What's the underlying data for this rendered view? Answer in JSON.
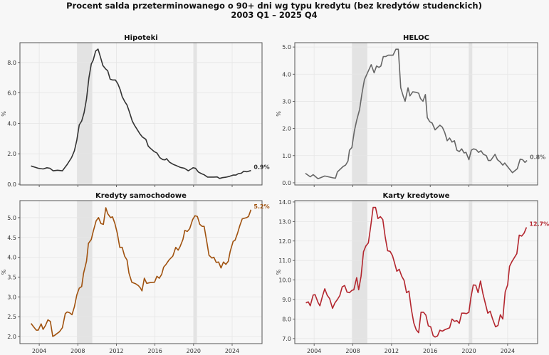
{
  "title_line1": "Procent salda przeterminowanego o 90+ dni wg typu kredytu (bez kredytów studenckich)",
  "title_line2": "2003 Q1 – 2025 Q4",
  "chart_data": [
    {
      "type": "line",
      "title": "Hipoteki",
      "ylabel": "%",
      "color": "#333333",
      "end_label": "0.9%",
      "xlim": [
        2002,
        2027.1
      ],
      "ylim": [
        -0.05,
        9.3
      ],
      "xticks": [
        2004,
        2008,
        2012,
        2016,
        2020,
        2024
      ],
      "show_xtick_labels": false,
      "yticks": [
        0,
        2,
        4,
        6,
        8
      ],
      "ytick_labels": [
        "0.0",
        "2.0",
        "4.0",
        "6.0",
        "8.0"
      ],
      "recessions": [
        [
          2007.9,
          2009.5
        ],
        [
          2020.0,
          2020.35
        ]
      ],
      "x": [
        2003.15,
        2003.9,
        2004.4,
        2004.8,
        2005.1,
        2005.45,
        2005.9,
        2006.4,
        2006.9,
        2007.35,
        2007.65,
        2007.9,
        2008.15,
        2008.4,
        2008.65,
        2008.9,
        2009.15,
        2009.4,
        2009.6,
        2009.85,
        2010.1,
        2010.35,
        2010.6,
        2010.85,
        2011.1,
        2011.35,
        2011.6,
        2011.9,
        2012.15,
        2012.4,
        2012.6,
        2012.85,
        2013.1,
        2013.35,
        2013.65,
        2013.9,
        2014.15,
        2014.45,
        2014.7,
        2015.05,
        2015.3,
        2015.55,
        2015.9,
        2016.2,
        2016.5,
        2016.8,
        2017.05,
        2017.2,
        2017.5,
        2017.9,
        2018.3,
        2018.65,
        2019.05,
        2019.45,
        2019.7,
        2019.95,
        2020.2,
        2020.5,
        2020.8,
        2021.1,
        2021.45,
        2022.1,
        2022.45,
        2022.7,
        2023.0,
        2023.35,
        2023.75,
        2024.1,
        2024.4,
        2024.65,
        2024.95,
        2025.2,
        2025.55,
        2025.95
      ],
      "y": [
        1.2,
        1.05,
        1.0,
        1.08,
        1.05,
        0.88,
        0.92,
        0.88,
        1.3,
        1.75,
        2.2,
        2.9,
        3.9,
        4.15,
        4.7,
        5.6,
        7.0,
        7.9,
        8.15,
        8.75,
        8.88,
        8.35,
        7.8,
        7.6,
        7.45,
        6.9,
        6.85,
        6.85,
        6.6,
        6.2,
        5.75,
        5.45,
        5.2,
        4.75,
        4.15,
        3.85,
        3.6,
        3.3,
        3.1,
        2.95,
        2.5,
        2.35,
        2.15,
        2.05,
        1.75,
        1.62,
        1.6,
        1.68,
        1.45,
        1.3,
        1.2,
        1.1,
        1.05,
        0.88,
        0.98,
        1.08,
        1.05,
        0.8,
        0.7,
        0.62,
        0.47,
        0.47,
        0.48,
        0.38,
        0.43,
        0.46,
        0.52,
        0.6,
        0.6,
        0.7,
        0.72,
        0.85,
        0.82,
        0.9
      ]
    },
    {
      "type": "line",
      "title": "HELOC",
      "ylabel": "%",
      "color": "#666666",
      "end_label": "0.8%",
      "xlim": [
        2002,
        2027.1
      ],
      "ylim": [
        -0.08,
        5.16
      ],
      "xticks": [
        2004,
        2008,
        2012,
        2016,
        2020,
        2024
      ],
      "show_xtick_labels": false,
      "yticks": [
        0,
        1,
        2,
        3,
        4,
        5
      ],
      "ytick_labels": [
        "0.0",
        "1.0",
        "2.0",
        "3.0",
        "4.0",
        "5.0"
      ],
      "recessions": [
        [
          2007.9,
          2009.5
        ],
        [
          2020.0,
          2020.35
        ]
      ],
      "x": [
        2003.1,
        2003.6,
        2003.9,
        2004.4,
        2005.1,
        2006.0,
        2006.2,
        2006.4,
        2007.0,
        2007.25,
        2007.5,
        2007.65,
        2007.9,
        2008.15,
        2008.4,
        2008.7,
        2008.95,
        2009.2,
        2009.9,
        2010.2,
        2010.45,
        2010.7,
        2010.9,
        2011.15,
        2011.4,
        2011.65,
        2012.15,
        2012.45,
        2012.7,
        2012.95,
        2013.2,
        2013.4,
        2013.7,
        2013.9,
        2014.2,
        2014.55,
        2014.8,
        2015.0,
        2015.25,
        2015.5,
        2015.7,
        2015.95,
        2016.2,
        2016.5,
        2017.0,
        2017.25,
        2017.5,
        2017.75,
        2018.0,
        2018.25,
        2018.5,
        2018.75,
        2019.0,
        2019.25,
        2019.5,
        2019.7,
        2020.0,
        2020.25,
        2020.5,
        2020.75,
        2021.0,
        2021.25,
        2021.5,
        2021.8,
        2022.0,
        2022.25,
        2022.7,
        2022.95,
        2023.2,
        2023.5,
        2023.7,
        2024.1,
        2024.5,
        2025.0,
        2025.3,
        2025.55,
        2025.8,
        2026.0
      ],
      "y": [
        0.35,
        0.22,
        0.3,
        0.15,
        0.25,
        0.18,
        0.17,
        0.4,
        0.6,
        0.65,
        0.8,
        1.2,
        1.3,
        1.9,
        2.3,
        2.7,
        3.3,
        3.8,
        4.35,
        4.05,
        4.3,
        4.25,
        4.3,
        4.65,
        4.65,
        4.7,
        4.7,
        4.92,
        4.92,
        3.5,
        3.2,
        3.0,
        3.5,
        3.2,
        3.35,
        3.33,
        3.3,
        3.1,
        3.0,
        3.25,
        2.4,
        2.25,
        2.2,
        1.95,
        2.12,
        2.05,
        1.85,
        1.55,
        1.65,
        1.5,
        1.55,
        1.2,
        1.15,
        1.25,
        1.1,
        1.12,
        0.85,
        1.2,
        1.25,
        1.22,
        1.12,
        1.18,
        1.05,
        1.0,
        0.82,
        0.82,
        1.05,
        0.85,
        0.78,
        0.65,
        0.73,
        0.55,
        0.37,
        0.52,
        0.87,
        0.85,
        0.75,
        0.82
      ]
    },
    {
      "type": "line",
      "title": "Kredyty samochodowe",
      "ylabel": "%",
      "color": "#a0520f",
      "end_label": "5.2%",
      "xlim": [
        2002,
        2027.1
      ],
      "ylim": [
        1.82,
        5.43
      ],
      "xticks": [
        2004,
        2008,
        2012,
        2016,
        2020,
        2024
      ],
      "show_xtick_labels": true,
      "xtick_labels": [
        "2004",
        "2008",
        "2012",
        "2016",
        "2020",
        "2024"
      ],
      "yticks": [
        2.0,
        2.5,
        3.0,
        3.5,
        4.0,
        4.5,
        5.0
      ],
      "ytick_labels": [
        "2.0",
        "2.5",
        "3.0",
        "3.5",
        "4.0",
        "4.5",
        "5.0"
      ],
      "recessions": [
        [
          2007.9,
          2009.5
        ],
        [
          2020.0,
          2020.35
        ]
      ],
      "x": [
        2003.15,
        2003.4,
        2003.7,
        2003.9,
        2004.2,
        2004.4,
        2004.65,
        2004.9,
        2005.15,
        2005.4,
        2005.6,
        2006.1,
        2006.4,
        2006.7,
        2006.9,
        2007.15,
        2007.4,
        2007.65,
        2007.9,
        2008.15,
        2008.4,
        2008.6,
        2008.9,
        2009.1,
        2009.4,
        2009.6,
        2009.9,
        2010.15,
        2010.4,
        2010.65,
        2010.9,
        2011.1,
        2011.4,
        2011.6,
        2011.85,
        2012.1,
        2012.35,
        2012.6,
        2012.85,
        2013.1,
        2013.3,
        2013.6,
        2014.0,
        2014.3,
        2014.5,
        2014.65,
        2014.9,
        2015.15,
        2015.45,
        2015.95,
        2016.2,
        2016.45,
        2016.7,
        2016.9,
        2017.15,
        2017.45,
        2017.85,
        2018.15,
        2018.4,
        2018.6,
        2018.9,
        2019.1,
        2019.35,
        2019.6,
        2019.9,
        2020.15,
        2020.4,
        2020.65,
        2020.9,
        2021.1,
        2021.4,
        2021.6,
        2021.9,
        2022.1,
        2022.35,
        2022.6,
        2022.85,
        2023.1,
        2023.35,
        2023.6,
        2023.8,
        2024.1,
        2024.3,
        2024.55,
        2024.8,
        2025.05,
        2025.5,
        2025.7,
        2025.95
      ],
      "y": [
        2.33,
        2.25,
        2.16,
        2.16,
        2.32,
        2.18,
        2.28,
        2.42,
        2.38,
        2.0,
        2.03,
        2.12,
        2.22,
        2.58,
        2.62,
        2.6,
        2.55,
        2.75,
        3.05,
        3.22,
        3.26,
        3.6,
        3.9,
        4.35,
        4.45,
        4.65,
        4.92,
        5.0,
        4.85,
        4.83,
        5.25,
        5.1,
        5.0,
        5.02,
        4.85,
        4.6,
        4.25,
        4.25,
        4.03,
        3.93,
        3.6,
        3.37,
        3.33,
        3.28,
        3.22,
        3.15,
        3.47,
        3.34,
        3.36,
        3.37,
        3.52,
        3.47,
        3.57,
        3.75,
        3.82,
        3.93,
        4.03,
        4.25,
        4.18,
        4.27,
        4.45,
        4.68,
        4.65,
        4.72,
        4.95,
        5.05,
        5.03,
        4.83,
        4.78,
        4.78,
        4.35,
        4.05,
        3.98,
        4.0,
        3.87,
        3.88,
        3.73,
        3.88,
        3.82,
        3.9,
        4.15,
        4.4,
        4.43,
        4.6,
        4.8,
        4.97,
        5.0,
        5.03,
        5.2
      ]
    },
    {
      "type": "line",
      "title": "Karty kredytowe",
      "ylabel": "%",
      "color": "#b3262e",
      "end_label": "12.7%",
      "xlim": [
        2002,
        2027.1
      ],
      "ylim": [
        6.74,
        14.07
      ],
      "xticks": [
        2004,
        2008,
        2012,
        2016,
        2020,
        2024
      ],
      "show_xtick_labels": true,
      "xtick_labels": [
        "2004",
        "2008",
        "2012",
        "2016",
        "2020",
        "2024"
      ],
      "yticks": [
        7,
        8,
        9,
        10,
        11,
        12,
        13,
        14
      ],
      "ytick_labels": [
        "7.0",
        "8.0",
        "9.0",
        "10.0",
        "11.0",
        "12.0",
        "13.0",
        "14.0"
      ],
      "recessions": [
        [
          2007.9,
          2009.5
        ],
        [
          2020.0,
          2020.35
        ]
      ],
      "x": [
        2003.15,
        2003.4,
        2003.6,
        2003.9,
        2004.1,
        2004.4,
        2004.6,
        2004.85,
        2005.1,
        2005.35,
        2005.6,
        2005.9,
        2006.15,
        2006.4,
        2006.65,
        2006.9,
        2007.15,
        2007.4,
        2007.65,
        2007.9,
        2008.1,
        2008.4,
        2008.6,
        2008.85,
        2009.1,
        2009.35,
        2009.6,
        2009.85,
        2010.1,
        2010.35,
        2010.6,
        2010.85,
        2011.1,
        2011.35,
        2011.6,
        2011.85,
        2012.1,
        2012.3,
        2012.55,
        2012.8,
        2013.05,
        2013.3,
        2013.55,
        2013.8,
        2014.05,
        2014.3,
        2014.55,
        2014.8,
        2015.05,
        2015.3,
        2015.55,
        2015.8,
        2016.05,
        2016.3,
        2016.5,
        2016.75,
        2017.0,
        2017.25,
        2017.5,
        2018.0,
        2018.25,
        2018.5,
        2018.75,
        2019.0,
        2019.25,
        2019.5,
        2019.75,
        2020.0,
        2020.2,
        2020.45,
        2020.7,
        2020.95,
        2021.2,
        2021.45,
        2021.7,
        2021.95,
        2022.2,
        2022.45,
        2022.75,
        2023.0,
        2023.25,
        2023.5,
        2023.75,
        2024.0,
        2024.2,
        2024.45,
        2024.7,
        2024.95,
        2025.2,
        2025.45,
        2025.7,
        2025.95
      ],
      "y": [
        8.83,
        8.88,
        8.68,
        9.23,
        9.25,
        8.85,
        8.68,
        9.15,
        9.55,
        9.22,
        9.05,
        8.55,
        8.83,
        9.0,
        9.2,
        9.65,
        9.72,
        9.38,
        9.35,
        9.47,
        9.5,
        10.12,
        9.5,
        10.2,
        11.45,
        11.75,
        11.9,
        12.75,
        13.72,
        13.72,
        13.15,
        13.25,
        13.1,
        12.2,
        11.5,
        11.47,
        11.25,
        10.9,
        10.45,
        10.55,
        10.2,
        9.98,
        9.35,
        9.43,
        8.5,
        7.8,
        7.45,
        7.3,
        8.35,
        8.35,
        8.2,
        7.65,
        7.6,
        7.15,
        7.08,
        7.13,
        7.43,
        7.38,
        7.45,
        7.55,
        8.0,
        7.88,
        7.92,
        7.78,
        8.3,
        8.3,
        8.28,
        8.35,
        9.1,
        9.75,
        9.73,
        9.35,
        9.95,
        9.3,
        8.8,
        8.3,
        8.4,
        8.0,
        7.6,
        7.67,
        8.22,
        8.0,
        9.4,
        9.75,
        10.7,
        10.95,
        11.15,
        11.35,
        12.3,
        12.25,
        12.4,
        12.7
      ]
    }
  ]
}
